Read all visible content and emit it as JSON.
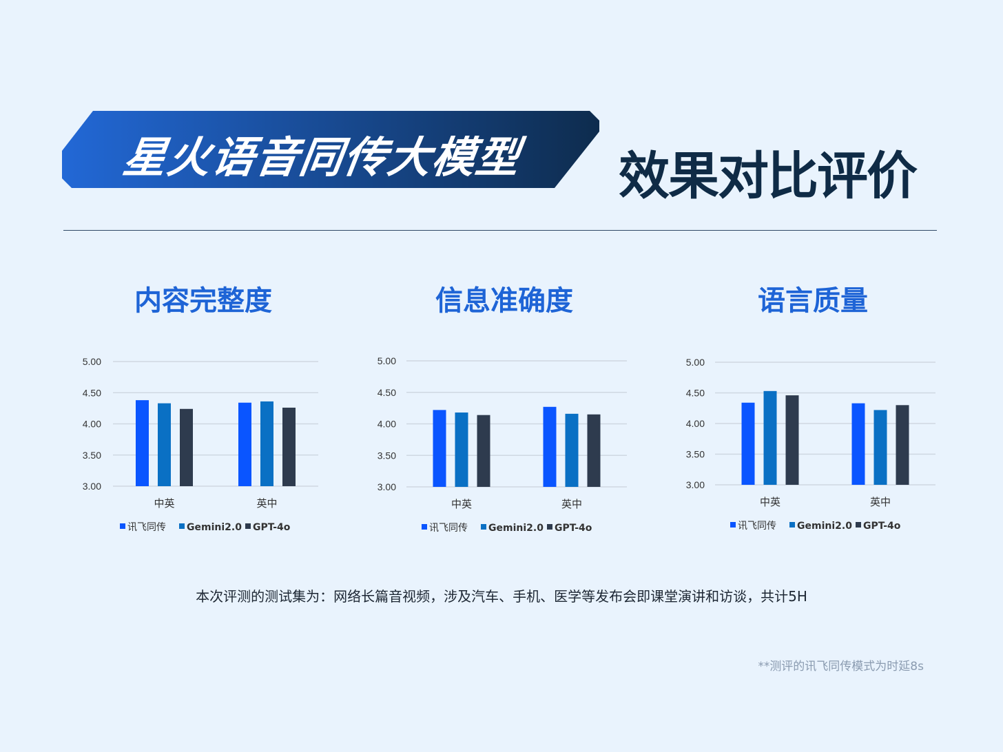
{
  "header": {
    "banner_title": "星火语音同传大模型",
    "headline": "效果对比评价"
  },
  "colors": {
    "banner_start": "#2268d6",
    "banner_end": "#0e2c4e",
    "xunfei": "#0a55ff",
    "gemini": "#0a70c4",
    "gpt": "#2e3b4e",
    "grid": "#cfd8e2"
  },
  "chart_data": [
    {
      "type": "bar",
      "title": "内容完整度",
      "categories": [
        "中英",
        "英中"
      ],
      "ylim": [
        3.0,
        5.0
      ],
      "yticks": [
        "3.00",
        "3.50",
        "4.00",
        "4.50",
        "5.00"
      ],
      "grid": true,
      "legend": "bottom",
      "series": [
        {
          "name": "讯飞同传",
          "values": [
            4.38,
            4.34
          ]
        },
        {
          "name": "Gemini2.0",
          "values": [
            4.33,
            4.36
          ]
        },
        {
          "name": "GPT-4o",
          "values": [
            4.24,
            4.26
          ]
        }
      ]
    },
    {
      "type": "bar",
      "title": "信息准确度",
      "categories": [
        "中英",
        "英中"
      ],
      "ylim": [
        3.0,
        5.0
      ],
      "yticks": [
        "3.00",
        "3.50",
        "4.00",
        "4.50",
        "5.00"
      ],
      "grid": true,
      "legend": "bottom",
      "series": [
        {
          "name": "讯飞同传",
          "values": [
            4.22,
            4.27
          ]
        },
        {
          "name": "Gemini2.0",
          "values": [
            4.18,
            4.16
          ]
        },
        {
          "name": "GPT-4o",
          "values": [
            4.14,
            4.15
          ]
        }
      ]
    },
    {
      "type": "bar",
      "title": "语言质量",
      "categories": [
        "中英",
        "英中"
      ],
      "ylim": [
        3.0,
        5.0
      ],
      "yticks": [
        "3.00",
        "3.50",
        "4.00",
        "4.50",
        "5.00"
      ],
      "grid": true,
      "legend": "bottom",
      "series": [
        {
          "name": "讯飞同传",
          "values": [
            4.34,
            4.33
          ]
        },
        {
          "name": "Gemini2.0",
          "values": [
            4.53,
            4.22
          ]
        },
        {
          "name": "GPT-4o",
          "values": [
            4.46,
            4.3
          ]
        }
      ]
    }
  ],
  "note": "本次评测的测试集为：网络长篇音视频，涉及汽车、手机、医学等发布会即课堂演讲和访谈，共计5H",
  "footnote": "**测评的讯飞同传模式为时延8s"
}
